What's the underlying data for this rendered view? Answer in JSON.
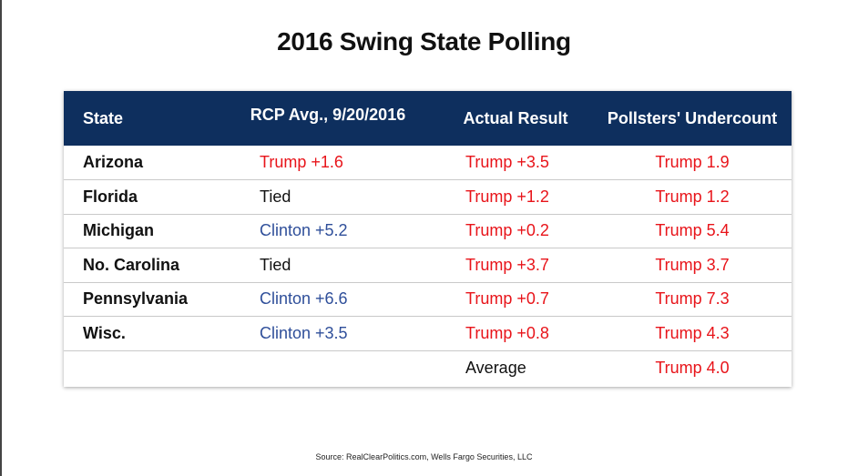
{
  "title": "2016 Swing State Polling",
  "source": "Source: RealClearPolitics.com, Wells Fargo Securities, LLC",
  "colors": {
    "header_bg": "#0e2f5e",
    "trump": "#e8141a",
    "clinton": "#2f4f9a",
    "neutral": "#111111"
  },
  "chart_data": {
    "type": "table",
    "title": "2016 Swing State Polling",
    "columns": [
      "State",
      "RCP Avg., 9/20/2016",
      "Actual Result",
      "Pollsters' Undercount"
    ],
    "rows": [
      {
        "state": "Arizona",
        "rcp": "Trump +1.6",
        "rcp_party": "trump",
        "actual": "Trump +3.5",
        "undercount": "Trump 1.9"
      },
      {
        "state": "Florida",
        "rcp": "Tied",
        "rcp_party": "none",
        "actual": "Trump +1.2",
        "undercount": "Trump 1.2"
      },
      {
        "state": "Michigan",
        "rcp": "Clinton +5.2",
        "rcp_party": "clinton",
        "actual": "Trump +0.2",
        "undercount": "Trump 5.4"
      },
      {
        "state": "No. Carolina",
        "rcp": "Tied",
        "rcp_party": "none",
        "actual": "Trump +3.7",
        "undercount": "Trump 3.7"
      },
      {
        "state": "Pennsylvania",
        "rcp": "Clinton +6.6",
        "rcp_party": "clinton",
        "actual": "Trump +0.7",
        "undercount": "Trump 7.3"
      },
      {
        "state": "Wisc.",
        "rcp": "Clinton +3.5",
        "rcp_party": "clinton",
        "actual": "Trump +0.8",
        "undercount": "Trump 4.3"
      }
    ],
    "summary": {
      "label": "Average",
      "undercount": "Trump 4.0"
    }
  }
}
